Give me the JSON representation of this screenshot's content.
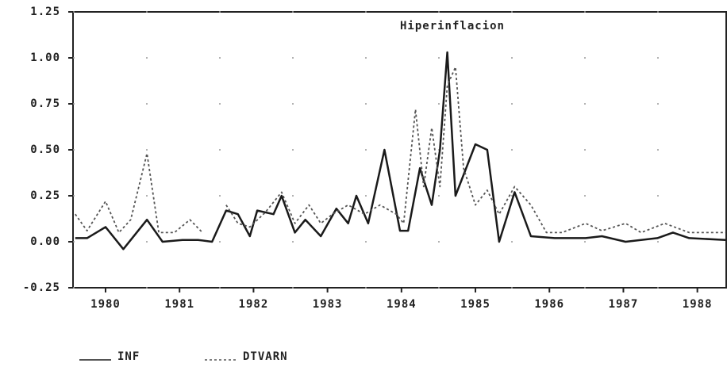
{
  "chart_data": {
    "type": "line",
    "title": "Hiperinflacion",
    "xlim": [
      1979.56,
      1988.39
    ],
    "xticks": [
      1980,
      1981,
      1982,
      1983,
      1984,
      1985,
      1986,
      1987,
      1988
    ],
    "ylim": [
      -0.25,
      1.25
    ],
    "yticks": [
      -0.25,
      {
        "value": 0,
        "label": "0.00"
      },
      0.25,
      {
        "value": 0.5,
        "label": "0.50"
      },
      0.75,
      {
        "value": 1,
        "label": "1.00"
      },
      1.25
    ],
    "grid": true,
    "legend": "bottom-left",
    "series": [
      {
        "name": "INF",
        "color": "#1a1a1a",
        "line_style": "solid",
        "x": [
          1979.59,
          1979.75,
          1980.0,
          1980.24,
          1980.56,
          1980.77,
          1981.04,
          1981.25,
          1981.44,
          1981.63,
          1981.79,
          1981.95,
          1982.05,
          1982.27,
          1982.38,
          1982.56,
          1982.7,
          1982.91,
          1983.12,
          1983.28,
          1983.39,
          1983.55,
          1983.77,
          1983.98,
          1984.09,
          1984.25,
          1984.41,
          1984.52,
          1984.62,
          1984.73,
          1985.0,
          1985.16,
          1985.32,
          1985.53,
          1985.75,
          1986.07,
          1986.49,
          1986.71,
          1987.03,
          1987.46,
          1987.67,
          1987.89,
          1988.38
        ],
        "values": [
          0.02,
          0.02,
          0.08,
          -0.04,
          0.12,
          0.0,
          0.01,
          0.01,
          0.0,
          0.17,
          0.15,
          0.03,
          0.17,
          0.15,
          0.25,
          0.05,
          0.12,
          0.03,
          0.18,
          0.1,
          0.25,
          0.1,
          0.5,
          0.06,
          0.06,
          0.4,
          0.2,
          0.5,
          1.03,
          0.25,
          0.53,
          0.5,
          0.0,
          0.27,
          0.03,
          0.02,
          0.02,
          0.03,
          0.0,
          0.02,
          0.05,
          0.02,
          0.01
        ]
      },
      {
        "name": "DTVARN",
        "color": "#555555",
        "line_style": "dotted",
        "x": [
          1979.59,
          1979.75,
          1980.0,
          1980.18,
          1980.34,
          1980.56,
          1980.72,
          1980.93,
          1981.14,
          1981.31,
          1981.44,
          1981.63,
          1981.79,
          1981.95,
          1982.16,
          1982.38,
          1982.56,
          1982.75,
          1982.91,
          1983.07,
          1983.28,
          1983.5,
          1983.71,
          1983.93,
          1984.03,
          1984.19,
          1984.3,
          1984.41,
          1984.52,
          1984.62,
          1984.73,
          1984.84,
          1985.0,
          1985.16,
          1985.32,
          1985.53,
          1985.75,
          1985.96,
          1986.17,
          1986.49,
          1986.71,
          1987.03,
          1987.24,
          1987.56,
          1987.89,
          1988.38
        ],
        "values": [
          0.15,
          0.06,
          0.22,
          0.05,
          0.12,
          0.48,
          0.05,
          0.05,
          0.12,
          0.05,
          null,
          0.2,
          0.1,
          0.08,
          0.16,
          0.27,
          0.1,
          0.2,
          0.1,
          0.15,
          0.2,
          0.15,
          0.2,
          0.15,
          0.1,
          0.72,
          0.3,
          0.62,
          0.3,
          0.85,
          0.95,
          0.4,
          0.2,
          0.28,
          0.15,
          0.3,
          0.2,
          0.05,
          0.05,
          0.1,
          0.06,
          0.1,
          0.05,
          0.1,
          0.05,
          0.05
        ]
      }
    ]
  }
}
